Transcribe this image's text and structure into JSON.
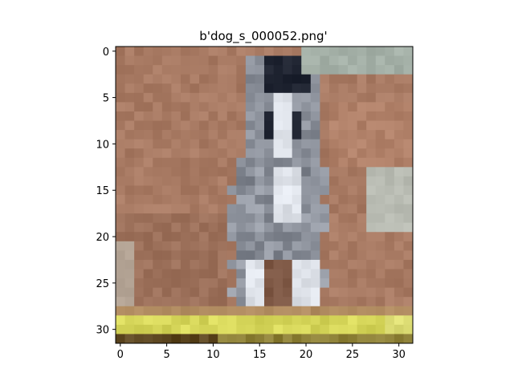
{
  "figure": {
    "title": "b'dog_s_000052.png'",
    "image_grid": {
      "cols": 32,
      "rows": 32
    },
    "x_axis": {
      "ticks": [
        0,
        5,
        10,
        15,
        20,
        25,
        30
      ],
      "labels": [
        "0",
        "5",
        "10",
        "15",
        "20",
        "25",
        "30"
      ]
    },
    "y_axis": {
      "ticks": [
        0,
        5,
        10,
        15,
        20,
        25,
        30
      ],
      "labels": [
        "0",
        "5",
        "10",
        "15",
        "20",
        "25",
        "30"
      ]
    },
    "colors": {
      "background": "#ffffff",
      "axis": "#000000",
      "wall_brown": "#a87a63",
      "dark_brown": "#7d5744",
      "floor_yellow": "#d6d65a",
      "floor_dark": "#5c4620",
      "dog_gray": "#8a8f99",
      "dog_dark": "#1e2330",
      "dog_white": "#dfe3ea",
      "gray_patch": "#b9bcb3"
    }
  }
}
